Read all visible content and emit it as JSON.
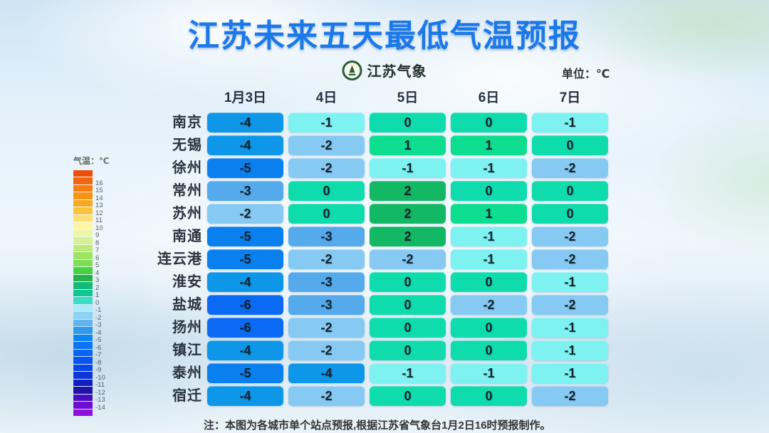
{
  "title": "江苏未来五天最低气温预报",
  "brand": {
    "name": "江苏气象",
    "icon": "jiangsu-weather-badge"
  },
  "unit_label": "单位：℃",
  "legend": {
    "title": "气温：℃",
    "items": [
      {
        "label": "",
        "color": "#ee4e09"
      },
      {
        "label": "16",
        "color": "#f3660c"
      },
      {
        "label": "15",
        "color": "#f57d0d"
      },
      {
        "label": "14",
        "color": "#f79310"
      },
      {
        "label": "13",
        "color": "#f9a91e"
      },
      {
        "label": "12",
        "color": "#fac43a"
      },
      {
        "label": "11",
        "color": "#fce075"
      },
      {
        "label": "10",
        "color": "#fdf6a5"
      },
      {
        "label": "9",
        "color": "#eef7a8"
      },
      {
        "label": "8",
        "color": "#d6f191"
      },
      {
        "label": "7",
        "color": "#bbea79"
      },
      {
        "label": "6",
        "color": "#9ee463"
      },
      {
        "label": "5",
        "color": "#7cdf53"
      },
      {
        "label": "4",
        "color": "#46d440"
      },
      {
        "label": "3",
        "color": "#27b24c"
      },
      {
        "label": "2",
        "color": "#13ba78"
      },
      {
        "label": "1",
        "color": "#0fc795"
      },
      {
        "label": "0",
        "color": "#3adcc4"
      },
      {
        "label": "-1",
        "color": "#a9ecf9"
      },
      {
        "label": "-2",
        "color": "#8dd1f4"
      },
      {
        "label": "-3",
        "color": "#63b3ee"
      },
      {
        "label": "-4",
        "color": "#2d9aec"
      },
      {
        "label": "-5",
        "color": "#0d86f0"
      },
      {
        "label": "-6",
        "color": "#0b74f4"
      },
      {
        "label": "-7",
        "color": "#0a64f6"
      },
      {
        "label": "-8",
        "color": "#0955f2"
      },
      {
        "label": "-9",
        "color": "#0846e8"
      },
      {
        "label": "-10",
        "color": "#0d35d8"
      },
      {
        "label": "-11",
        "color": "#1020c0"
      },
      {
        "label": "-12",
        "color": "#2012a8"
      },
      {
        "label": "-13",
        "color": "#4a0ec2"
      },
      {
        "label": "-14",
        "color": "#6f0bd4"
      },
      {
        "label": "",
        "color": "#8a12dc"
      }
    ]
  },
  "forecast": {
    "columns": [
      "1月3日",
      "4日",
      "5日",
      "6日",
      "7日"
    ],
    "rows": [
      {
        "city": "南京",
        "temps": [
          -4,
          -1,
          0,
          0,
          -1
        ]
      },
      {
        "city": "无锡",
        "temps": [
          -4,
          -2,
          1,
          1,
          0
        ]
      },
      {
        "city": "徐州",
        "temps": [
          -5,
          -2,
          -1,
          -1,
          -2
        ]
      },
      {
        "city": "常州",
        "temps": [
          -3,
          0,
          2,
          0,
          0
        ]
      },
      {
        "city": "苏州",
        "temps": [
          -2,
          0,
          2,
          1,
          0
        ]
      },
      {
        "city": "南通",
        "temps": [
          -5,
          -3,
          2,
          -1,
          -2
        ]
      },
      {
        "city": "连云港",
        "temps": [
          -5,
          -2,
          -2,
          -1,
          -2
        ]
      },
      {
        "city": "淮安",
        "temps": [
          -4,
          -3,
          0,
          0,
          -1
        ]
      },
      {
        "city": "盐城",
        "temps": [
          -6,
          -3,
          0,
          -2,
          -2
        ]
      },
      {
        "city": "扬州",
        "temps": [
          -6,
          -2,
          0,
          0,
          -1
        ]
      },
      {
        "city": "镇江",
        "temps": [
          -4,
          -2,
          0,
          0,
          -1
        ]
      },
      {
        "city": "泰州",
        "temps": [
          -5,
          -4,
          -1,
          -1,
          -1
        ]
      },
      {
        "city": "宿迁",
        "temps": [
          -4,
          -2,
          0,
          0,
          -2
        ]
      }
    ]
  },
  "colors": {
    "title_blue": "#1a78e9",
    "temp": {
      "2": "#12b863",
      "1": "#0cdd8e",
      "0": "#0edcad",
      "-1": "#7df2f1",
      "-2": "#86c9f2",
      "-3": "#55aaeb",
      "-4": "#0e96e9",
      "-5": "#0a80ee",
      "-6": "#0b6af3"
    }
  },
  "note": "注：本图为各城市单个站点预报,根据江苏省气象台1月2日16时预报制作。",
  "chart_data": {
    "type": "heatmap",
    "title": "江苏未来五天最低气温预报",
    "unit": "℃",
    "x": [
      "1月3日",
      "4日",
      "5日",
      "6日",
      "7日"
    ],
    "y": [
      "南京",
      "无锡",
      "徐州",
      "常州",
      "苏州",
      "南通",
      "连云港",
      "淮安",
      "盐城",
      "扬州",
      "镇江",
      "泰州",
      "宿迁"
    ],
    "values": [
      [
        -4,
        -1,
        0,
        0,
        -1
      ],
      [
        -4,
        -2,
        1,
        1,
        0
      ],
      [
        -5,
        -2,
        -1,
        -1,
        -2
      ],
      [
        -3,
        0,
        2,
        0,
        0
      ],
      [
        -2,
        0,
        2,
        1,
        0
      ],
      [
        -5,
        -3,
        2,
        -1,
        -2
      ],
      [
        -5,
        -2,
        -2,
        -1,
        -2
      ],
      [
        -4,
        -3,
        0,
        0,
        -1
      ],
      [
        -6,
        -3,
        0,
        -2,
        -2
      ],
      [
        -6,
        -2,
        0,
        0,
        -1
      ],
      [
        -4,
        -2,
        0,
        0,
        -1
      ],
      [
        -5,
        -4,
        -1,
        -1,
        -1
      ],
      [
        -4,
        -2,
        0,
        0,
        -2
      ]
    ],
    "colorbar_range": [
      -14,
      16
    ],
    "colorbar_label": "气温：℃",
    "legend_position": "left",
    "annotations": [
      "注：本图为各城市单个站点预报,根据江苏省气象台1月2日16时预报制作。"
    ]
  }
}
